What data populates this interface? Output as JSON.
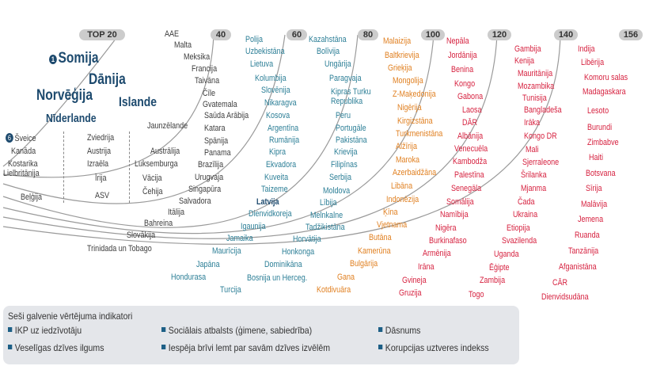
{
  "ranks": [
    "TOP 20",
    "40",
    "60",
    "80",
    "100",
    "120",
    "140",
    "156"
  ],
  "top20": {
    "first": "Somija",
    "first_num": "1",
    "big": [
      "Dānija",
      "Norvēģija",
      "Islande",
      "Nīderlande"
    ],
    "col1": [
      "Šveice",
      "Kanāda",
      "Kostarika",
      "Lielbritānija",
      "Beļģija"
    ],
    "col1_num": "6",
    "col2": [
      "Zviedrija",
      "Austrija",
      "Izraēla",
      "Īrija",
      "ASV"
    ],
    "col3": [
      "Jaunzēlande",
      "Austrālija",
      "Luksemburga",
      "Vācija",
      "Čehija"
    ]
  },
  "band40": [
    "AAE",
    "Malta",
    "Meksika",
    "Francija",
    "Taivāna",
    "Čīle",
    "Gvatemala",
    "Saūda Arābija",
    "Katara",
    "Spānija",
    "Panama",
    "Brazīlija",
    "Urugvaja",
    "Singapūra",
    "Salvadora",
    "Itālija",
    "Bahreina",
    "Slovākija",
    "Trinidada un Tobago"
  ],
  "band60": [
    "Polija",
    "Uzbekistāna",
    "Lietuva",
    "Kolumbija",
    "Slovēnija",
    "Nikaragva",
    "Kosova",
    "Argentīna",
    "Rumānija",
    "Kipra",
    "Ekvadora",
    "Kuveita",
    "Taizeme",
    "Latvija",
    "Dienvidkoreja",
    "Igaunija",
    "Jamaika",
    "Maurīcija",
    "Japāna",
    "Hondurasa"
  ],
  "band80": [
    "Kazahstāna",
    "Bolīvija",
    "Ungārija",
    "Paragvaja",
    "Kipras Turku Republika",
    "Peru",
    "Portugāle",
    "Pakistāna",
    "Krievija",
    "Filipīnas",
    "Serbija",
    "Moldova",
    "Lībija",
    "Melnkalne",
    "Tadžikistāna",
    "Horvātija",
    "Honkonga",
    "Dominikāna",
    "Bosnija un Herceg.",
    "Turcija"
  ],
  "band100": [
    "Malaizija",
    "Baltkrievija",
    "Grieķija",
    "Mongolija",
    "Z-Maķedonija",
    "Nigērija",
    "Kirgizstāna",
    "Turkmenistāna",
    "Alžīrija",
    "Maroka",
    "Azerbaidžāna",
    "Libāna",
    "Indonēzija",
    "Ķīna",
    "Vjetnama",
    "Butāna",
    "Kamerūna",
    "Bulgārija",
    "Gana",
    "Kotdivuāra"
  ],
  "band120": [
    "Nepāla",
    "Jordānija",
    "Benina",
    "Kongo",
    "Gabona",
    "Laosa",
    "DĀR",
    "Albānija",
    "Venecuēla",
    "Kambodža",
    "Palestīna",
    "Senegāla",
    "Somālija",
    "Namībija",
    "Nigēra",
    "Burkinafaso",
    "Armēnija",
    "Irāna",
    "Gvineja",
    "Gruzija"
  ],
  "band140": [
    "Gambija",
    "Kenija",
    "Mauritānija",
    "Mozambika",
    "Tunisija",
    "Bangladeša",
    "Irāka",
    "Kongo DR",
    "Mali",
    "Sjerraleone",
    "Šrilanka",
    "Mjanma",
    "Čada",
    "Ukraina",
    "Etiopija",
    "Svazilenda",
    "Uganda",
    "Ēģipte",
    "Zambija",
    "Togo"
  ],
  "band156": [
    "Indija",
    "Libērija",
    "Komoru salas",
    "Madagaskara",
    "Lesoto",
    "Burundi",
    "Zimbabve",
    "Haiti",
    "Botsvana",
    "Sīrija",
    "Malāvija",
    "Jemena",
    "Ruanda",
    "Tanzānija",
    "Afganistāna",
    "CĀR",
    "Dienvidsudāna"
  ],
  "legend": {
    "title": "Seši galvenie vērtējuma indikatori",
    "items": [
      "IKP uz iedzīvotāju",
      "Sociālais atbalsts (ģimene, sabiedrība)",
      "Dāsnums",
      "Veselīgas dzīves ilgums",
      "Iespēja brīvi lemt par savām dzīves izvēlēm",
      "Korupcijas uztveres indekss"
    ]
  },
  "colors": {
    "navy": "#1d4a6e",
    "teal": "#2b7e96",
    "orange": "#e07f1f",
    "red": "#d6213f",
    "gray": "#3d3d3d",
    "pill": "#cccccc",
    "legend_bg": "#e4e6ea"
  }
}
